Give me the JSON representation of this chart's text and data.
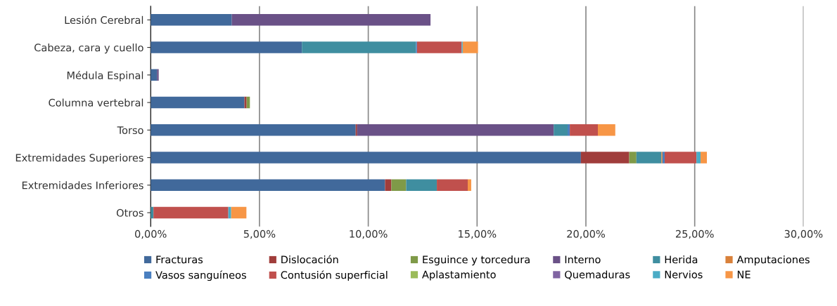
{
  "chart_data": {
    "type": "bar",
    "orientation": "horizontal",
    "stacked": true,
    "categories": [
      "Lesión Cerebral",
      "Cabeza, cara y cuello",
      "Médula Espinal",
      "Columna vertebral",
      "Torso",
      "Extremidades Superiores",
      "Extremidades Inferiores",
      "Otros"
    ],
    "series": [
      {
        "name": "Fracturas",
        "color": "#41699b",
        "values": [
          3.73,
          6.95,
          0.29,
          4.31,
          9.42,
          19.77,
          10.77,
          0
        ]
      },
      {
        "name": "Dislocación",
        "color": "#a03d3b",
        "values": [
          0,
          0,
          0,
          0.1,
          0.07,
          2.22,
          0.29,
          0
        ]
      },
      {
        "name": "Esguince y torcedura",
        "color": "#7f9a48",
        "values": [
          0,
          0,
          0,
          0.15,
          0,
          0.33,
          0.68,
          0
        ]
      },
      {
        "name": "Interno",
        "color": "#6a5187",
        "values": [
          9.13,
          0,
          0.08,
          0,
          9.03,
          0,
          0,
          0
        ]
      },
      {
        "name": "Herida",
        "color": "#3f8ea0",
        "values": [
          0,
          5.24,
          0,
          0,
          0.64,
          1.15,
          1.41,
          0.13
        ]
      },
      {
        "name": "Amputaciones",
        "color": "#d9813a",
        "values": [
          0,
          0,
          0,
          0,
          0,
          0.05,
          0,
          0
        ]
      },
      {
        "name": "Vasos sanguíneos",
        "color": "#4a7fc0",
        "values": [
          0,
          0.05,
          0,
          0,
          0.1,
          0.1,
          0,
          0
        ]
      },
      {
        "name": "Contusión superficial",
        "color": "#c0504d",
        "values": [
          0,
          2.05,
          0,
          0,
          1.29,
          1.46,
          1.42,
          3.44
        ]
      },
      {
        "name": "Aplastamiento",
        "color": "#9bbb59",
        "values": [
          0,
          0,
          0,
          0,
          0,
          0,
          0,
          0
        ]
      },
      {
        "name": "Quemaduras",
        "color": "#8064a2",
        "values": [
          0,
          0,
          0,
          0,
          0,
          0,
          0,
          0
        ]
      },
      {
        "name": "Nervios",
        "color": "#4bacc6",
        "values": [
          0,
          0.05,
          0,
          0,
          0,
          0.19,
          0,
          0.13
        ]
      },
      {
        "name": "NE",
        "color": "#f79646",
        "values": [
          0,
          0.7,
          0,
          0,
          0.8,
          0.29,
          0.16,
          0.7
        ]
      }
    ],
    "xlim": [
      0,
      30
    ],
    "xticks": [
      {
        "value": 0,
        "label": "0,00%"
      },
      {
        "value": 5,
        "label": "5,00%"
      },
      {
        "value": 10,
        "label": "10,00%"
      },
      {
        "value": 15,
        "label": "15,00%"
      },
      {
        "value": 20,
        "label": "20,00%"
      },
      {
        "value": 25,
        "label": "25,00%"
      },
      {
        "value": 30,
        "label": "30,00%"
      }
    ],
    "grid": "x",
    "legend": "bottom"
  }
}
